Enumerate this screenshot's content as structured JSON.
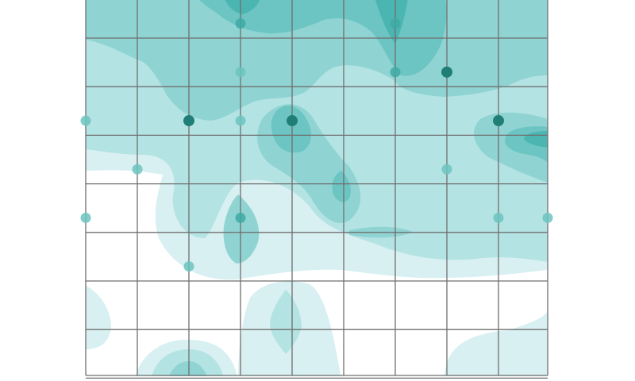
{
  "figure": {
    "type": "contour-grid",
    "grid": {
      "columns": 9,
      "rows": 8
    },
    "colors": {
      "background": "#ffffff",
      "grid_line": "#6f6f6f",
      "levels": [
        "#d8f0f1",
        "#b4e3e3",
        "#8fd4d3",
        "#6cc5c2",
        "#4bb5b1"
      ],
      "point_light": "#6cc4bf",
      "point_mid": "#3fa9a3",
      "point_dark": "#1f7f76"
    },
    "points": [
      {
        "col": 3,
        "row": 0.7,
        "level": 2
      },
      {
        "col": 6,
        "row": 0.7,
        "level": 2
      },
      {
        "col": 3,
        "row": 1.7,
        "level": 1
      },
      {
        "col": 6,
        "row": 1.7,
        "level": 2
      },
      {
        "col": 7,
        "row": 1.7,
        "level": 3
      },
      {
        "col": 0,
        "row": 2.7,
        "level": 1
      },
      {
        "col": 2,
        "row": 2.7,
        "level": 3
      },
      {
        "col": 3,
        "row": 2.7,
        "level": 1
      },
      {
        "col": 4,
        "row": 2.7,
        "level": 3
      },
      {
        "col": 8,
        "row": 2.7,
        "level": 3
      },
      {
        "col": 1,
        "row": 3.7,
        "level": 1
      },
      {
        "col": 7,
        "row": 3.7,
        "level": 1
      },
      {
        "col": 0,
        "row": 4.7,
        "level": 1
      },
      {
        "col": 3,
        "row": 4.7,
        "level": 2
      },
      {
        "col": 8,
        "row": 4.7,
        "level": 1
      },
      {
        "col": 9,
        "row": 4.7,
        "level": 1
      },
      {
        "col": 2,
        "row": 5.7,
        "level": 1
      }
    ]
  }
}
